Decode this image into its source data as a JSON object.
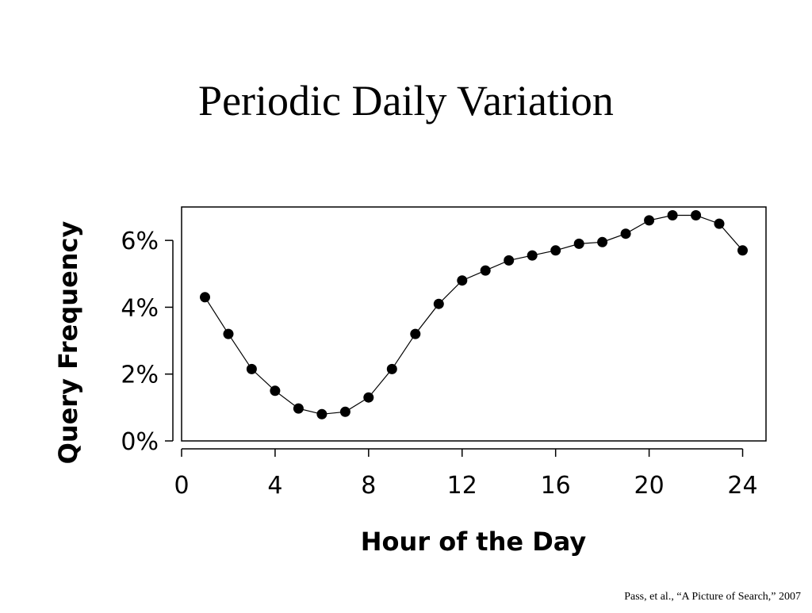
{
  "slide": {
    "title": "Periodic Daily Variation",
    "citation": "Pass, et al., “A Picture of Search,” 2007"
  },
  "chart_data": {
    "type": "line",
    "title": "",
    "xlabel": "Hour of the Day",
    "ylabel": "Query Frequency",
    "xlim": [
      0,
      25
    ],
    "ylim": [
      0,
      7
    ],
    "x_ticks": [
      0,
      4,
      8,
      12,
      16,
      20,
      24
    ],
    "x_tick_labels": [
      "0",
      "4",
      "8",
      "12",
      "16",
      "20",
      "24"
    ],
    "y_ticks": [
      0,
      2,
      4,
      6
    ],
    "y_tick_labels": [
      "0%",
      "2%",
      "4%",
      "6%"
    ],
    "grid": false,
    "legend": "none",
    "markers": "filled-circle",
    "colors": {
      "line": "#000000",
      "marker": "#000000",
      "frame": "#000000"
    },
    "series": [
      {
        "x": [
          1,
          2,
          3,
          4,
          5,
          6,
          7,
          8,
          9,
          10,
          11,
          12,
          13,
          14,
          15,
          16,
          17,
          18,
          19,
          20,
          21,
          22,
          23,
          24
        ],
        "values": [
          4.3,
          3.2,
          2.15,
          1.5,
          0.97,
          0.8,
          0.87,
          1.3,
          2.15,
          3.2,
          4.1,
          4.8,
          5.1,
          5.4,
          5.55,
          5.7,
          5.9,
          5.95,
          6.2,
          6.6,
          6.75,
          6.75,
          6.5,
          5.7
        ]
      }
    ]
  }
}
